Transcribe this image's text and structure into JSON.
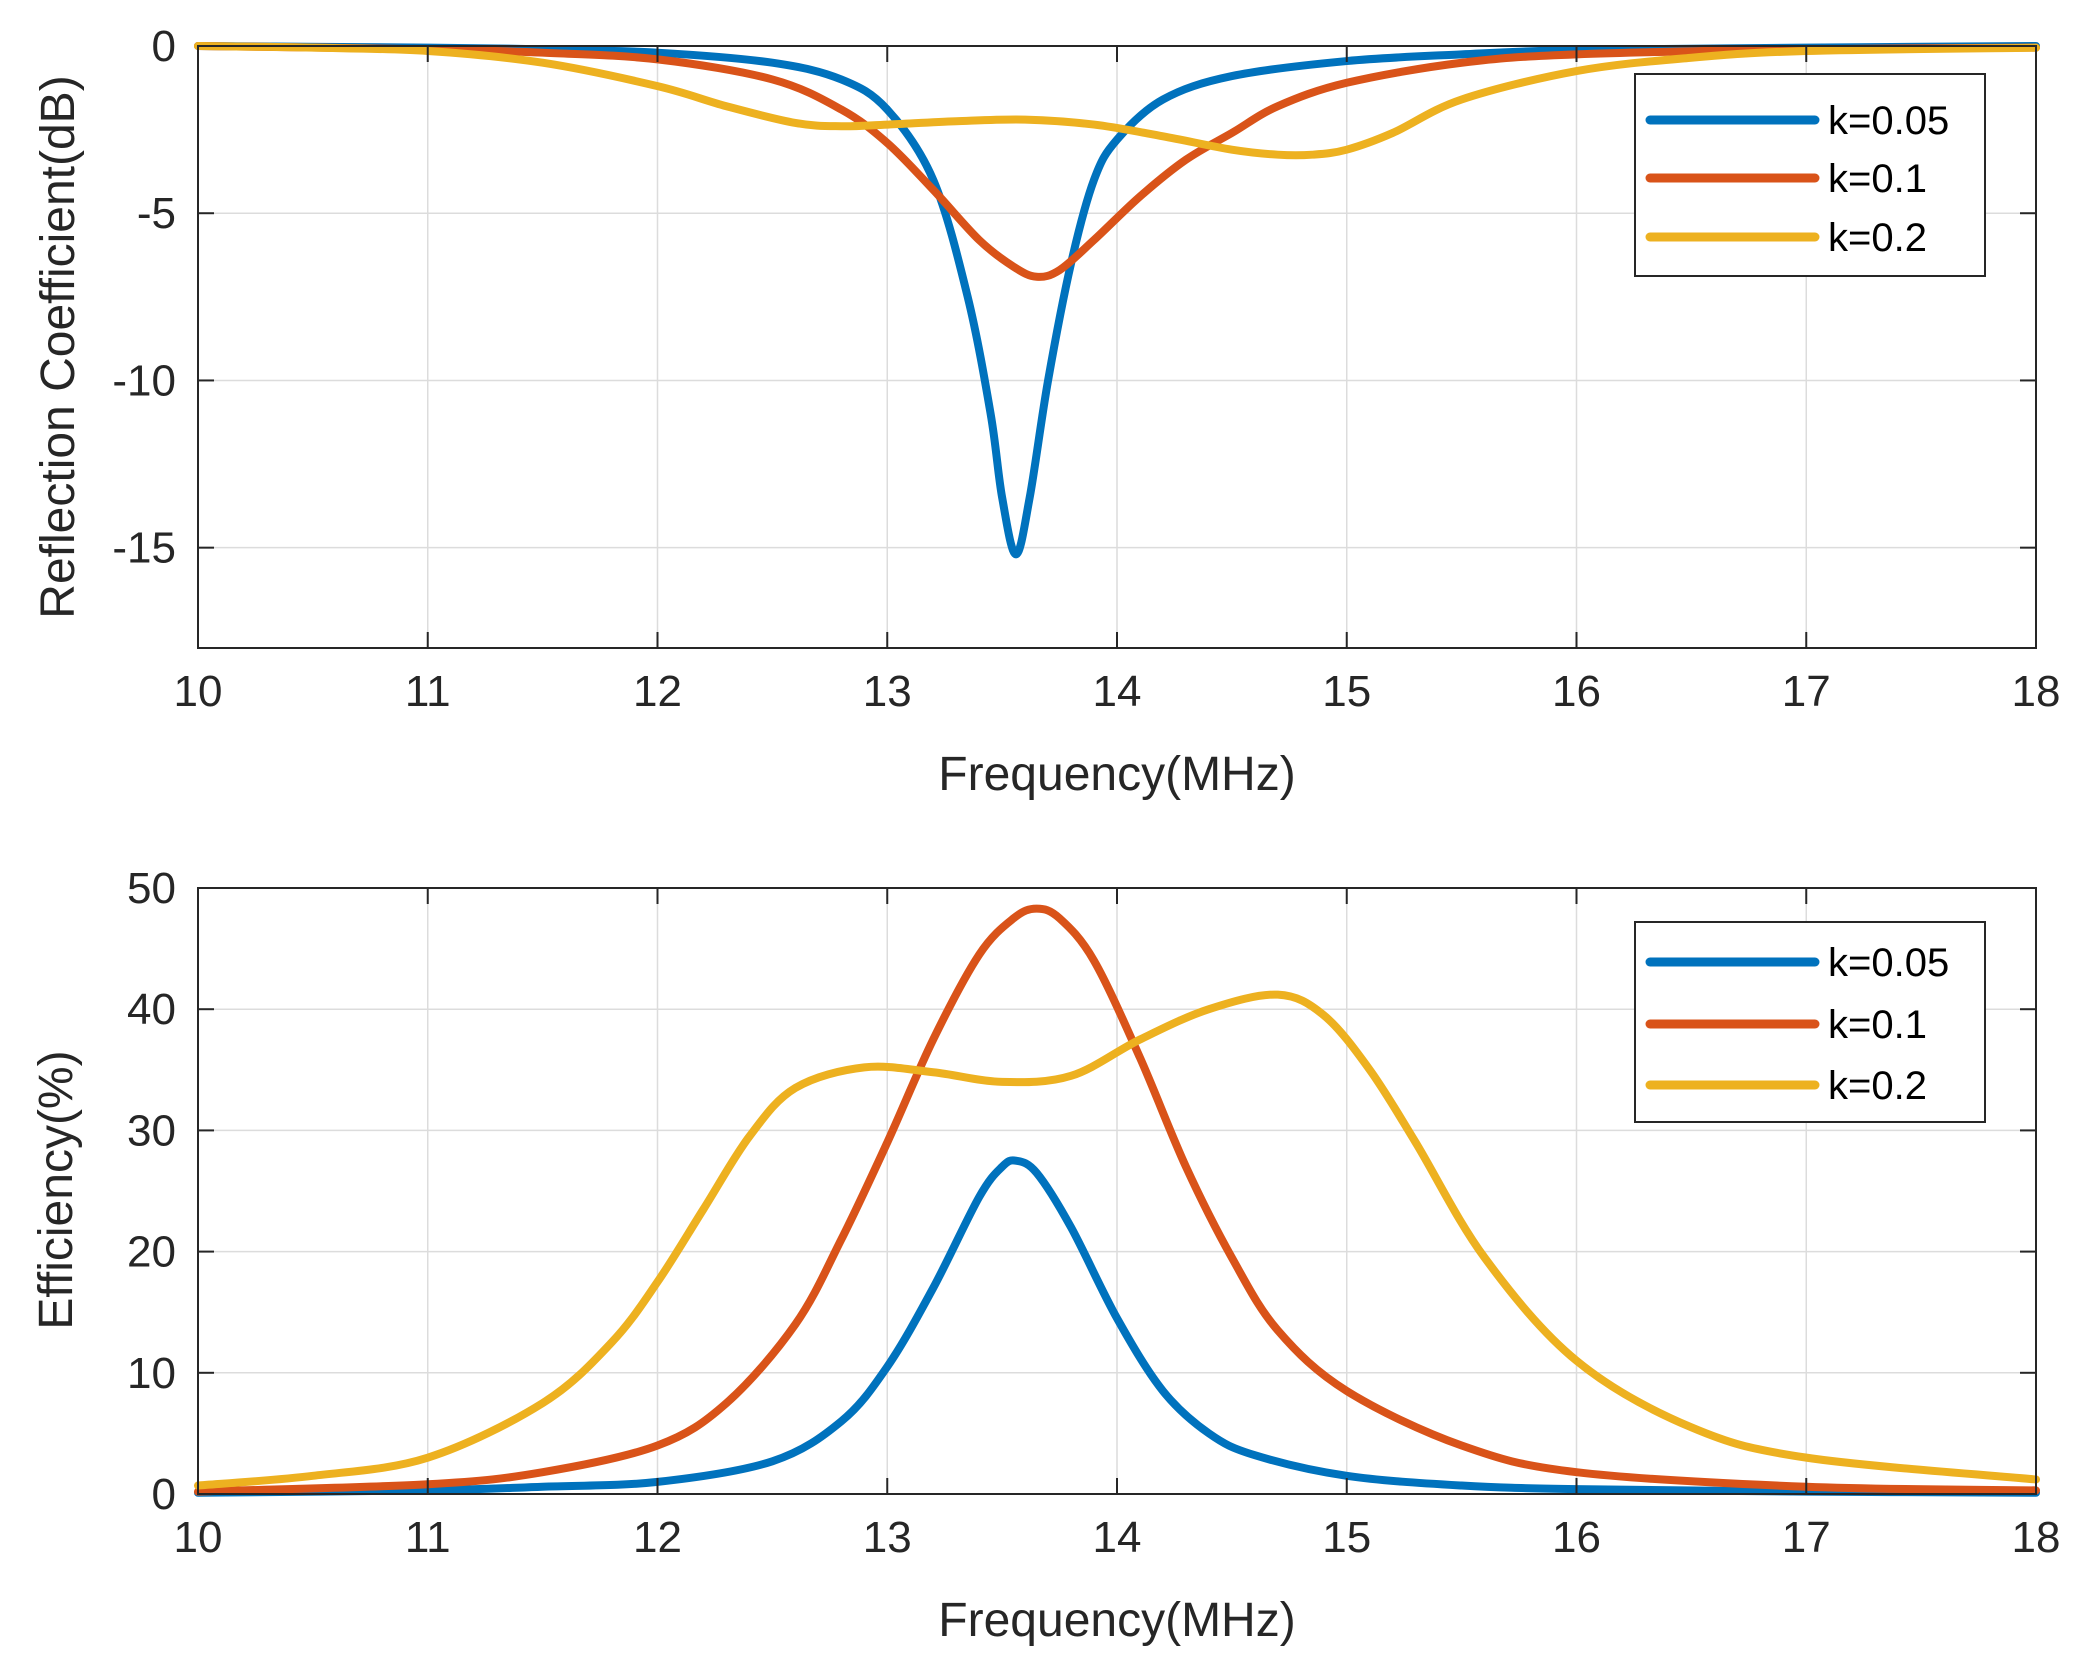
{
  "colors": {
    "k005": "#0072BD",
    "k01": "#D95319",
    "k02": "#EDB120",
    "grid": "#dcdcdc",
    "axis": "#262626"
  },
  "chart_data": [
    {
      "type": "line",
      "title": "",
      "xlabel": "Frequency(MHz)",
      "ylabel": "Reflection Coefficient(dB)",
      "xlim": [
        10,
        18
      ],
      "ylim": [
        -18,
        0
      ],
      "xticks": [
        10,
        11,
        12,
        13,
        14,
        15,
        16,
        17,
        18
      ],
      "yticks": [
        0,
        -5,
        -10,
        -15
      ],
      "grid": true,
      "legend_position": "top-right",
      "series": [
        {
          "name": "k=0.05",
          "color": "#0072BD",
          "x": [
            10,
            11,
            11.5,
            12,
            12.5,
            12.8,
            13.0,
            13.2,
            13.35,
            13.45,
            13.5,
            13.56,
            13.62,
            13.7,
            13.8,
            13.9,
            14.0,
            14.2,
            14.5,
            15,
            15.5,
            16,
            17,
            18
          ],
          "y": [
            0,
            -0.05,
            -0.1,
            -0.2,
            -0.5,
            -1.0,
            -1.9,
            -4.0,
            -7.5,
            -11.0,
            -13.5,
            -15.2,
            -13.5,
            -10.0,
            -6.5,
            -4.0,
            -2.8,
            -1.6,
            -0.9,
            -0.45,
            -0.25,
            -0.12,
            -0.05,
            0
          ]
        },
        {
          "name": "k=0.1",
          "color": "#D95319",
          "x": [
            10,
            11,
            11.5,
            12,
            12.5,
            12.8,
            13.0,
            13.2,
            13.4,
            13.55,
            13.65,
            13.75,
            13.9,
            14.1,
            14.3,
            14.5,
            14.7,
            15,
            15.5,
            16,
            17,
            18
          ],
          "y": [
            0,
            -0.1,
            -0.2,
            -0.4,
            -1.0,
            -1.9,
            -2.9,
            -4.3,
            -5.8,
            -6.6,
            -6.9,
            -6.7,
            -5.8,
            -4.5,
            -3.4,
            -2.6,
            -1.8,
            -1.1,
            -0.5,
            -0.25,
            -0.1,
            -0.05
          ]
        },
        {
          "name": "k=0.2",
          "color": "#EDB120",
          "x": [
            10,
            10.5,
            11,
            11.5,
            12,
            12.3,
            12.6,
            12.8,
            13.0,
            13.3,
            13.6,
            13.9,
            14.2,
            14.5,
            14.7,
            14.85,
            15.0,
            15.2,
            15.5,
            16,
            16.5,
            17,
            18
          ],
          "y": [
            0,
            -0.05,
            -0.15,
            -0.5,
            -1.2,
            -1.8,
            -2.3,
            -2.4,
            -2.35,
            -2.25,
            -2.2,
            -2.35,
            -2.7,
            -3.1,
            -3.25,
            -3.25,
            -3.1,
            -2.6,
            -1.6,
            -0.75,
            -0.35,
            -0.15,
            -0.05
          ]
        }
      ]
    },
    {
      "type": "line",
      "title": "",
      "xlabel": "Frequency(MHz)",
      "ylabel": "Efficiency(%)",
      "xlim": [
        10,
        18
      ],
      "ylim": [
        0,
        50
      ],
      "xticks": [
        10,
        11,
        12,
        13,
        14,
        15,
        16,
        17,
        18
      ],
      "yticks": [
        0,
        10,
        20,
        30,
        40,
        50
      ],
      "grid": true,
      "legend_position": "top-right",
      "series": [
        {
          "name": "k=0.05",
          "color": "#0072BD",
          "x": [
            10,
            11,
            11.5,
            12,
            12.5,
            12.8,
            13.0,
            13.2,
            13.4,
            13.5,
            13.56,
            13.65,
            13.8,
            14.0,
            14.2,
            14.4,
            14.6,
            15,
            15.5,
            16,
            17,
            18
          ],
          "y": [
            0.1,
            0.3,
            0.6,
            1.0,
            2.7,
            6.0,
            10.5,
            17.0,
            24.5,
            27.0,
            27.5,
            26.5,
            22.0,
            14.5,
            8.5,
            5.0,
            3.2,
            1.5,
            0.7,
            0.4,
            0.2,
            0.1
          ]
        },
        {
          "name": "k=0.1",
          "color": "#D95319",
          "x": [
            10,
            11,
            11.5,
            12,
            12.3,
            12.6,
            12.8,
            13.0,
            13.2,
            13.4,
            13.55,
            13.65,
            13.75,
            13.9,
            14.1,
            14.3,
            14.5,
            14.7,
            15,
            15.5,
            16,
            17,
            18
          ],
          "y": [
            0.2,
            0.8,
            1.8,
            4.0,
            7.5,
            14.0,
            21.0,
            29.0,
            37.5,
            44.5,
            47.5,
            48.3,
            47.5,
            44.0,
            36.0,
            27.0,
            19.5,
            13.5,
            8.5,
            4.0,
            1.8,
            0.6,
            0.3
          ]
        },
        {
          "name": "k=0.2",
          "color": "#EDB120",
          "x": [
            10,
            10.5,
            11,
            11.5,
            11.8,
            12,
            12.2,
            12.4,
            12.6,
            12.9,
            13.2,
            13.5,
            13.8,
            14.1,
            14.4,
            14.7,
            14.9,
            15.1,
            15.3,
            15.6,
            16,
            16.5,
            17,
            18
          ],
          "y": [
            0.7,
            1.5,
            3.0,
            7.5,
            12.5,
            17.5,
            23.5,
            29.5,
            33.5,
            35.2,
            34.8,
            34.0,
            34.5,
            37.5,
            40.0,
            41.2,
            39.5,
            35.0,
            29.0,
            19.5,
            11.0,
            5.5,
            3.0,
            1.2
          ]
        }
      ]
    }
  ]
}
